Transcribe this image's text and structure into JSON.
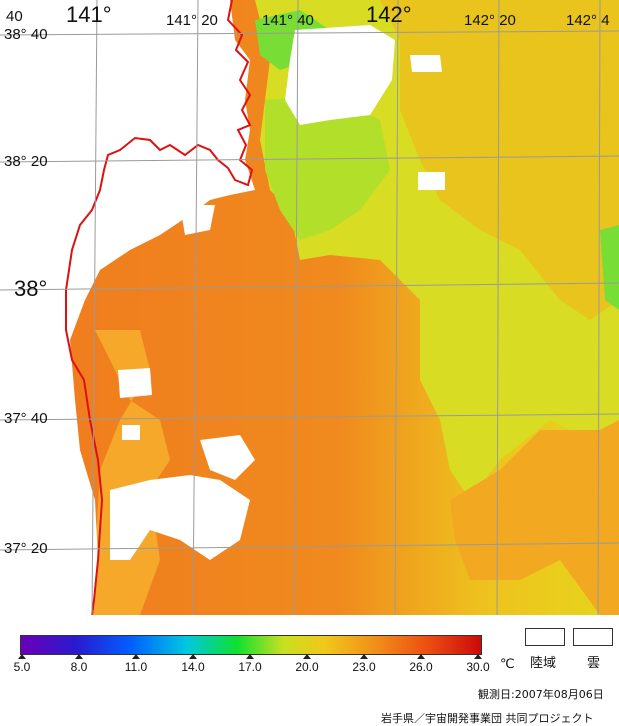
{
  "map": {
    "lat_labels": [
      "38° 40",
      "38° 20",
      "38°",
      "37° 40",
      "37° 20"
    ],
    "lon_labels": [
      "141°",
      "141° 20",
      "141° 40",
      "142°",
      "142° 20",
      "142° 4"
    ],
    "corner_label": "40",
    "colors": {
      "sea_orange": "#f07a1e",
      "sea_light_orange": "#f5a020",
      "sea_yellow": "#e9d21a",
      "sea_yellow_green": "#c6e22c",
      "sea_green": "#7fe23a",
      "cloud": "#ffffff",
      "land": "#ffffff",
      "coastline": "#dd1111",
      "grid": "#9a9a9a"
    }
  },
  "colorbar": {
    "unit": "℃",
    "ticks": [
      "5.0",
      "8.0",
      "11.0",
      "14.0",
      "17.0",
      "20.0",
      "23.0",
      "26.0",
      "30.0"
    ]
  },
  "legend": {
    "land_label": "陸域",
    "cloud_label": "雲"
  },
  "footer": {
    "observation_date": "観測日:2007年08月06日",
    "credit": "岩手県／宇宙開発事業団 共同プロジェクト"
  }
}
